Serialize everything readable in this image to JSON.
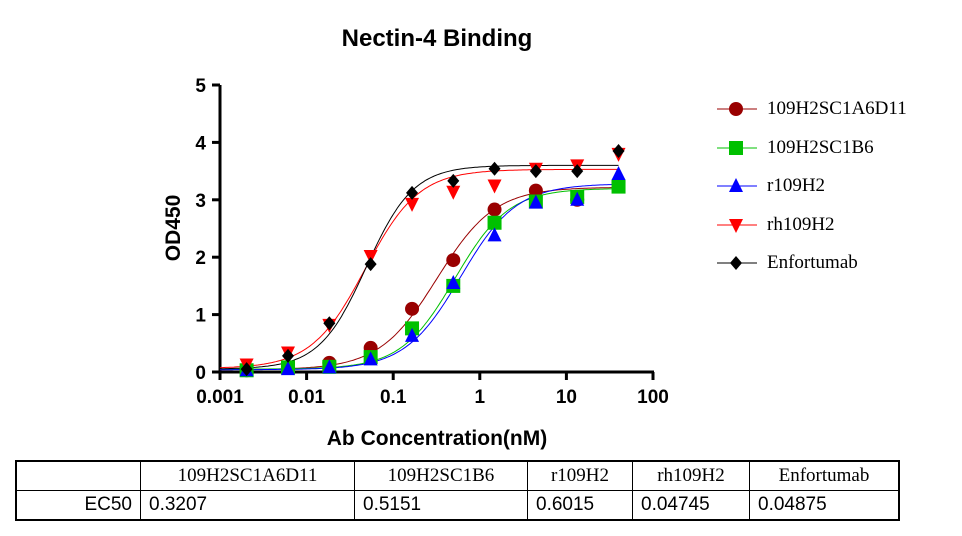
{
  "chart_data": {
    "type": "scatter",
    "title": "Nectin-4  Binding",
    "xlabel": "Ab Concentration(nM)",
    "ylabel": "OD450",
    "xscale": "log",
    "xlim": [
      0.001,
      100
    ],
    "ylim": [
      0,
      5
    ],
    "xticks": [
      "0.001",
      "0.01",
      "0.1",
      "1",
      "10",
      "100"
    ],
    "yticks": [
      "0",
      "1",
      "2",
      "3",
      "4",
      "5"
    ],
    "grid": false,
    "legend_position": "right",
    "x": [
      0.00203,
      0.0061,
      0.0183,
      0.0549,
      0.165,
      0.494,
      1.48,
      4.44,
      13.33,
      40
    ],
    "series": [
      {
        "name": "109H2SC1A6D11",
        "color": "#990000",
        "marker": "circle",
        "ec50": 0.3207,
        "values": [
          0.03,
          0.09,
          0.16,
          0.42,
          1.1,
          1.95,
          2.83,
          3.16,
          3.0,
          3.31
        ]
      },
      {
        "name": "109H2SC1B6",
        "color": "#00c000",
        "marker": "square",
        "ec50": 0.5151,
        "values": [
          0.03,
          0.08,
          0.09,
          0.26,
          0.76,
          1.5,
          2.6,
          2.97,
          3.05,
          3.23
        ]
      },
      {
        "name": "r109H2",
        "color": "#0000ff",
        "marker": "triangle-up",
        "ec50": 0.6015,
        "values": [
          0.03,
          0.05,
          0.08,
          0.22,
          0.63,
          1.55,
          2.38,
          2.95,
          3.0,
          3.45
        ]
      },
      {
        "name": "rh109H2",
        "color": "#ff0000",
        "marker": "triangle-down",
        "ec50": 0.04745,
        "values": [
          0.13,
          0.34,
          0.82,
          2.02,
          2.93,
          3.14,
          3.25,
          3.54,
          3.6,
          3.8
        ]
      },
      {
        "name": "Enfortumab",
        "color": "#000000",
        "marker": "diamond",
        "ec50": 0.04875,
        "values": [
          0.05,
          0.28,
          0.85,
          1.88,
          3.12,
          3.33,
          3.54,
          3.5,
          3.5,
          3.85
        ]
      }
    ]
  },
  "table": {
    "headers": [
      "",
      "109H2SC1A6D11",
      "109H2SC1B6",
      "r109H2",
      "rh109H2",
      "Enfortumab"
    ],
    "row_label": "EC50",
    "values": [
      "0.3207",
      "0.5151",
      "0.6015",
      "0.04745",
      "0.04875"
    ]
  }
}
